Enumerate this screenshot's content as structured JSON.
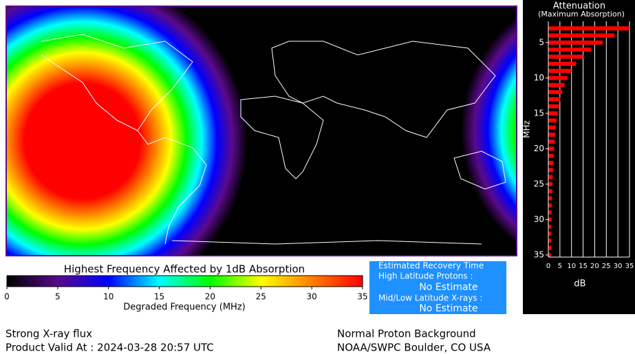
{
  "chart_data": [
    {
      "type": "colorbar",
      "title": "Highest Frequency Affected by 1dB Absorption",
      "xlabel": "Degraded Frequency (MHz)",
      "xlim": [
        0,
        35
      ],
      "xticks": [
        0,
        5,
        10,
        15,
        20,
        25,
        30,
        35
      ],
      "colors": [
        "#000000",
        "#5a0a8c",
        "#0000ff",
        "#00ffff",
        "#00ff00",
        "#ffff00",
        "#ff8000",
        "#ff0000"
      ]
    },
    {
      "type": "hbar",
      "title": "Attenuation",
      "subtitle": "(Maximum Absorption)",
      "xlabel": "dB",
      "ylabel": "MHz",
      "frequencies": [
        3,
        4,
        5,
        6,
        7,
        8,
        9,
        10,
        11,
        12,
        13,
        14,
        15,
        16,
        17,
        18,
        19,
        20,
        21,
        22,
        23,
        24,
        25,
        26,
        27,
        28,
        29,
        30,
        31,
        32,
        33,
        34,
        35
      ],
      "values": [
        35,
        28.5,
        23.5,
        18.5,
        15,
        12,
        10,
        8.2,
        7.0,
        6.0,
        5.2,
        4.6,
        4.0,
        3.6,
        3.3,
        3.0,
        2.7,
        2.5,
        2.3,
        2.2,
        2.0,
        1.9,
        1.8,
        1.7,
        1.6,
        1.5,
        1.4,
        1.4,
        1.3,
        1.3,
        1.2,
        1.2,
        1.1
      ],
      "color": "#ff0000",
      "xlim": [
        0,
        35
      ],
      "xticks": [
        0,
        5,
        10,
        15,
        20,
        25,
        30,
        35
      ],
      "ylim": [
        2,
        35.3
      ],
      "yticks": [
        5,
        10,
        15,
        20,
        25,
        30,
        35
      ],
      "grid": true
    }
  ],
  "recovery": {
    "title": "Estimated Recovery Time",
    "high_label": "High Latitude Protons :",
    "high_value": "No Estimate",
    "low_label": "Mid/Low Latitude X-rays :",
    "low_value": "No Estimate"
  },
  "footer": {
    "left": [
      "Strong X-ray flux",
      "Product Valid At : 2024-03-28 20:57 UTC"
    ],
    "right": [
      "Normal Proton Background",
      "NOAA/SWPC Boulder, CO USA"
    ]
  }
}
